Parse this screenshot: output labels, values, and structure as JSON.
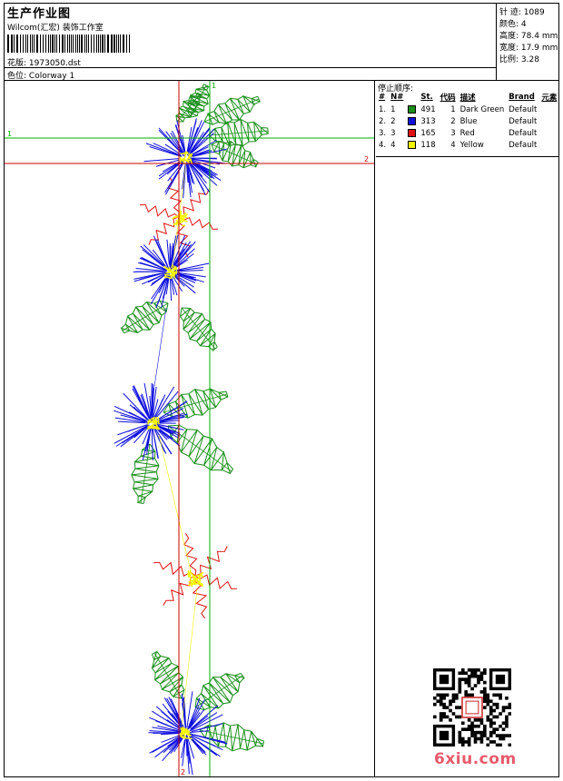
{
  "header": {
    "title": "生产作业图",
    "company": "Wilcom(汇宏) 装饰工作室",
    "design_label": "花版:",
    "design_file": "1973050.dst",
    "colorway_label": "色位:",
    "colorway": "Colorway 1"
  },
  "specs": [
    {
      "label": "针 迹:",
      "value": "1089"
    },
    {
      "label": "颜色:",
      "value": "4"
    },
    {
      "label": "高度:",
      "value": "78.4 mm"
    },
    {
      "label": "宽度:",
      "value": "17.9 mm"
    },
    {
      "label": "比例:",
      "value": "3.28"
    }
  ],
  "stop_sequence": {
    "title": "停止顺序:",
    "headers": [
      "#",
      "N#",
      "St.",
      "代码",
      "描述",
      "Brand",
      "元素"
    ],
    "rows": [
      {
        "num": "1.",
        "n": "1",
        "color": "#1a8f1a",
        "stitches": "491",
        "code": "1",
        "desc": "Dark Green",
        "brand": "Default"
      },
      {
        "num": "2.",
        "n": "2",
        "color": "#1010e0",
        "stitches": "313",
        "code": "2",
        "desc": "Blue",
        "brand": "Default"
      },
      {
        "num": "3.",
        "n": "3",
        "color": "#e01010",
        "stitches": "165",
        "code": "3",
        "desc": "Red",
        "brand": "Default"
      },
      {
        "num": "4.",
        "n": "4",
        "color": "#f5f500",
        "stitches": "118",
        "code": "4",
        "desc": "Yellow",
        "brand": "Default"
      }
    ]
  },
  "guides": {
    "h1_label": "1",
    "h2_label": "2",
    "v1_label": "1",
    "v2_label": "2",
    "green": "#00b000",
    "red": "#cc0000"
  },
  "watermark": "6xiu.com"
}
